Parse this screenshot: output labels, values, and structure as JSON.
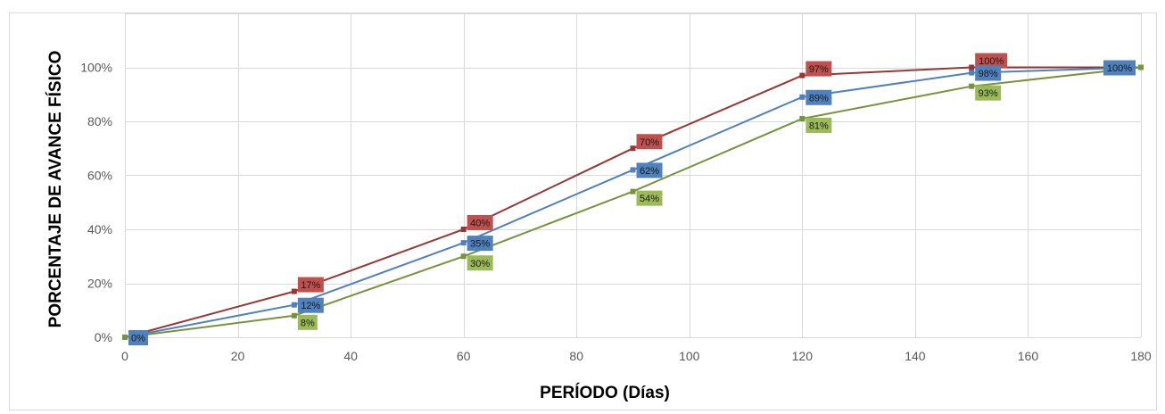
{
  "chart_data": {
    "type": "line",
    "title": "",
    "xlabel": "PERÍODO (Días)",
    "ylabel": "PORCENTAJE DE AVANCE FÍSICO",
    "xlim": [
      0,
      180
    ],
    "ylim": [
      0,
      1.2
    ],
    "x_ticks": [
      "0",
      "20",
      "40",
      "60",
      "80",
      "100",
      "120",
      "140",
      "160",
      "180"
    ],
    "y_ticks": [
      "0%",
      "20%",
      "40%",
      "60%",
      "80%",
      "100%"
    ],
    "grid": true,
    "legend": "none",
    "series": [
      {
        "color": "#953735",
        "label_color": "#c0504d",
        "x": [
          0,
          30,
          60,
          90,
          120,
          150,
          180
        ],
        "values": [
          0,
          0.17,
          0.4,
          0.7,
          0.97,
          1.0,
          1.0
        ],
        "data_labels": [
          "",
          "17%",
          "40%",
          "70%",
          "97%",
          "100%",
          ""
        ]
      },
      {
        "color": "#4f81bd",
        "label_color": "#4f81bd",
        "x": [
          0,
          30,
          60,
          90,
          120,
          150,
          180
        ],
        "values": [
          0,
          0.12,
          0.35,
          0.62,
          0.89,
          0.98,
          1.0
        ],
        "data_labels": [
          "0%",
          "12%",
          "35%",
          "62%",
          "89%",
          "98%",
          "100%"
        ]
      },
      {
        "color": "#77933c",
        "label_color": "#9bbb59",
        "x": [
          0,
          30,
          60,
          90,
          120,
          150,
          180
        ],
        "values": [
          0,
          0.08,
          0.3,
          0.54,
          0.81,
          0.93,
          1.0
        ],
        "data_labels": [
          "",
          "8%",
          "30%",
          "54%",
          "81%",
          "93%",
          ""
        ]
      }
    ]
  }
}
